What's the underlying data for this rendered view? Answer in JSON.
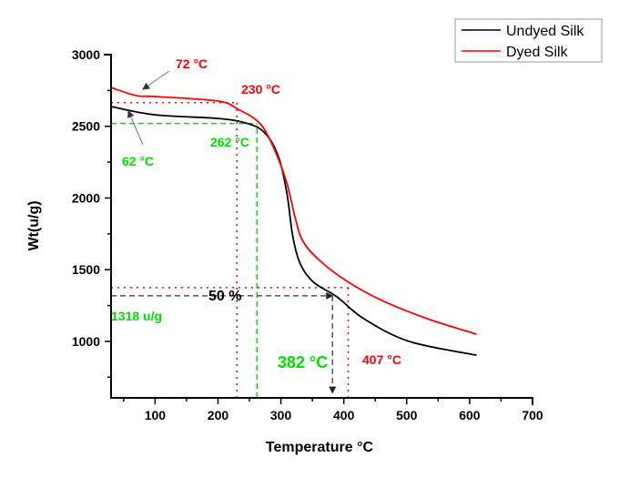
{
  "chart_data": {
    "type": "line",
    "title": "",
    "xlabel": "Temperature °C",
    "ylabel": "Wt(u/g)",
    "xlim": [
      30,
      700
    ],
    "ylim": [
      606,
      3000
    ],
    "xticks": [
      100,
      200,
      300,
      400,
      500,
      600,
      700
    ],
    "xtick_labels": [
      "100",
      "200",
      "300",
      "400",
      "500",
      "600",
      "700"
    ],
    "yticks": [
      1000,
      1500,
      2000,
      2500,
      3000
    ],
    "ytick_labels": [
      "1000",
      "1500",
      "2000",
      "2500",
      "3000"
    ],
    "grid": false,
    "legend": {
      "position": "top-right",
      "entries": [
        "Undyed Silk",
        "Dyed Silk"
      ]
    },
    "series": [
      {
        "name": "Undyed Silk",
        "color": "#000000",
        "x": [
          30,
          100,
          200,
          244,
          273,
          295,
          309,
          319,
          331,
          352,
          389,
          432,
          504,
          611
        ],
        "y": [
          2638,
          2580,
          2555,
          2523,
          2460,
          2301,
          2047,
          1730,
          1539,
          1412,
          1311,
          1158,
          1000,
          904
        ]
      },
      {
        "name": "Dyed Silk",
        "color": "#ff0000",
        "x": [
          30,
          70,
          100,
          200,
          232,
          266,
          287,
          309,
          323,
          335,
          360,
          403,
          461,
          533,
          611
        ],
        "y": [
          2771,
          2714,
          2708,
          2676,
          2619,
          2523,
          2365,
          2111,
          1857,
          1698,
          1571,
          1425,
          1285,
          1158,
          1050
        ]
      }
    ],
    "reference_lines": [
      {
        "name": "red-h-2665",
        "orientation": "h",
        "value": 2665,
        "from": 30,
        "to": 230,
        "color": "#ff0000",
        "style": "dotted"
      },
      {
        "name": "green-h-2520",
        "orientation": "h",
        "value": 2520,
        "from": 30,
        "to": 262,
        "color": "#00dd00",
        "style": "dashed"
      },
      {
        "name": "red-v-230",
        "orientation": "v",
        "value": 230,
        "from": 606,
        "to": 2665,
        "color": "#ff0000",
        "style": "dotted"
      },
      {
        "name": "green-v-262",
        "orientation": "v",
        "value": 262,
        "from": 606,
        "to": 2520,
        "color": "#00dd00",
        "style": "dashed"
      },
      {
        "name": "red-h-1375",
        "orientation": "h",
        "value": 1375,
        "from": 30,
        "to": 407,
        "color": "#ff0000",
        "style": "dotted"
      },
      {
        "name": "red-v-407",
        "orientation": "v",
        "value": 407,
        "from": 606,
        "to": 1375,
        "color": "#ff0000",
        "style": "dotted"
      },
      {
        "name": "gray-h-1318",
        "orientation": "h",
        "value": 1318,
        "from": 30,
        "to": 382,
        "color": "#555555",
        "style": "dashed"
      },
      {
        "name": "gray-v-382",
        "orientation": "v",
        "value": 382,
        "from": 640,
        "to": 1318,
        "color": "#555555",
        "style": "dashed"
      }
    ],
    "annotations": [
      {
        "name": "label-72c",
        "text": "72 °C",
        "color": "#ff0000",
        "size": 14
      },
      {
        "name": "label-230c",
        "text": "230 °C",
        "color": "#ff0000",
        "size": 14
      },
      {
        "name": "label-62c",
        "text": "62 °C",
        "color": "#00dd00",
        "size": 14
      },
      {
        "name": "label-262c",
        "text": "262 °C",
        "color": "#00dd00",
        "size": 14
      },
      {
        "name": "label-50pct",
        "text": "50 %",
        "color": "#000000",
        "size": 16
      },
      {
        "name": "label-1318ug",
        "text": "1318 u/g",
        "color": "#00dd00",
        "size": 14
      },
      {
        "name": "label-382c",
        "text": "382 °C",
        "color": "#00dd00",
        "size": 18
      },
      {
        "name": "label-407c",
        "text": "407 °C",
        "color": "#ff0000",
        "size": 14
      }
    ]
  }
}
